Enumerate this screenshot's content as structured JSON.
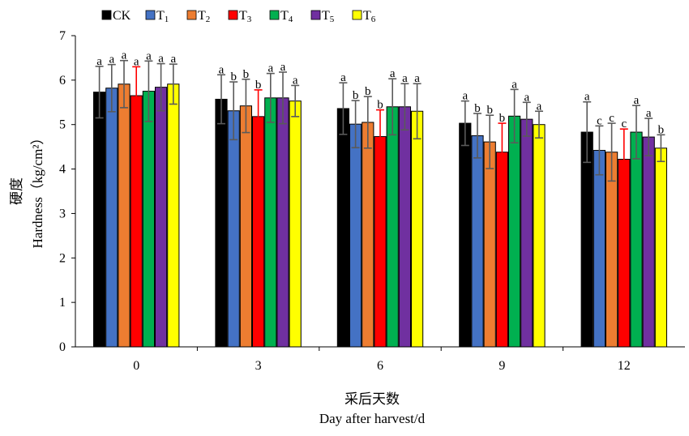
{
  "chart_data": {
    "type": "bar",
    "categories": [
      "0",
      "3",
      "6",
      "9",
      "12"
    ],
    "xlabel_cn": "采后天数",
    "xlabel_en": "Day after harvest/d",
    "ylabel_cn": "硬度",
    "ylabel_en": "Hardness（kg/cm²）",
    "ylim": [
      0,
      7
    ],
    "yticks": [
      0,
      1,
      2,
      3,
      4,
      5,
      6,
      7
    ],
    "grid": false,
    "legend_position": "top-left",
    "error_bar_color": "#5a5a5a",
    "error_bar_color_T3": "#ff0000",
    "series": [
      {
        "name": "CK",
        "name_base": "CK",
        "name_sub": "",
        "color": "#000000",
        "values": [
          5.73,
          5.57,
          5.36,
          5.03,
          4.83
        ],
        "errors": [
          0.58,
          0.55,
          0.58,
          0.5,
          0.68
        ],
        "labels": [
          "a",
          "a",
          "a",
          "a",
          "a"
        ]
      },
      {
        "name": "T1",
        "name_base": "T",
        "name_sub": "1",
        "color": "#4472c4",
        "values": [
          5.82,
          5.31,
          5.01,
          4.75,
          4.42
        ],
        "errors": [
          0.53,
          0.65,
          0.53,
          0.5,
          0.55
        ],
        "labels": [
          "a",
          "b",
          "b",
          "b",
          "c"
        ]
      },
      {
        "name": "T2",
        "name_base": "T",
        "name_sub": "2",
        "color": "#ed7d31",
        "values": [
          5.91,
          5.42,
          5.05,
          4.61,
          4.38
        ],
        "errors": [
          0.53,
          0.6,
          0.58,
          0.6,
          0.65
        ],
        "labels": [
          "a",
          "b",
          "b",
          "b",
          "c"
        ]
      },
      {
        "name": "T3",
        "name_base": "T",
        "name_sub": "3",
        "color": "#ff0000",
        "values": [
          5.65,
          5.18,
          4.73,
          4.38,
          4.22
        ],
        "errors": [
          0.65,
          0.6,
          0.6,
          0.65,
          0.68
        ],
        "labels": [
          "a",
          "b",
          "b",
          "b",
          "c"
        ]
      },
      {
        "name": "T4",
        "name_base": "T",
        "name_sub": "4",
        "color": "#00b050",
        "values": [
          5.75,
          5.6,
          5.4,
          5.19,
          4.83
        ],
        "errors": [
          0.68,
          0.55,
          0.63,
          0.6,
          0.6
        ],
        "labels": [
          "a",
          "a",
          "a",
          "a",
          "a"
        ]
      },
      {
        "name": "T5",
        "name_base": "T",
        "name_sub": "5",
        "color": "#7030a0",
        "values": [
          5.84,
          5.6,
          5.4,
          5.12,
          4.72
        ],
        "errors": [
          0.53,
          0.58,
          0.52,
          0.38,
          0.42
        ],
        "labels": [
          "a",
          "a",
          "a",
          "a",
          "a"
        ]
      },
      {
        "name": "T6",
        "name_base": "T",
        "name_sub": "6",
        "color": "#ffff00",
        "values": [
          5.91,
          5.53,
          5.3,
          5.0,
          4.47
        ],
        "errors": [
          0.45,
          0.35,
          0.62,
          0.3,
          0.3
        ],
        "labels": [
          "a",
          "a",
          "a",
          "a",
          "b"
        ]
      }
    ]
  }
}
